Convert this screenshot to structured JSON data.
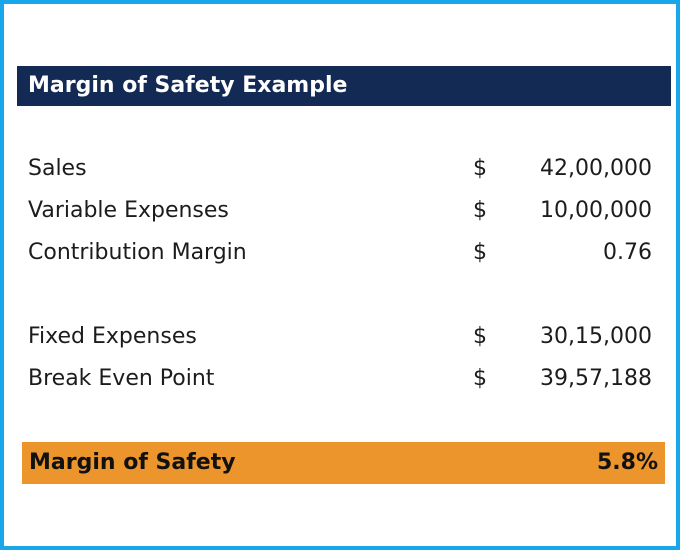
{
  "title": "Margin of Safety Example",
  "colors": {
    "frame_border": "#1aa7ea",
    "title_background": "#132a55",
    "title_text": "#ffffff",
    "highlight_background": "#ec952d"
  },
  "rows": [
    {
      "label": "Sales",
      "currency": "$",
      "value": "42,00,000"
    },
    {
      "label": "Variable Expenses",
      "currency": "$",
      "value": "10,00,000"
    },
    {
      "label": "Contribution Margin",
      "currency": "$",
      "value": "0.76"
    },
    {
      "label": "Fixed Expenses",
      "currency": "$",
      "value": "30,15,000"
    },
    {
      "label": "Break Even Point",
      "currency": "$",
      "value": "39,57,188"
    }
  ],
  "result": {
    "label": "Margin of Safety",
    "value": "5.8%"
  }
}
